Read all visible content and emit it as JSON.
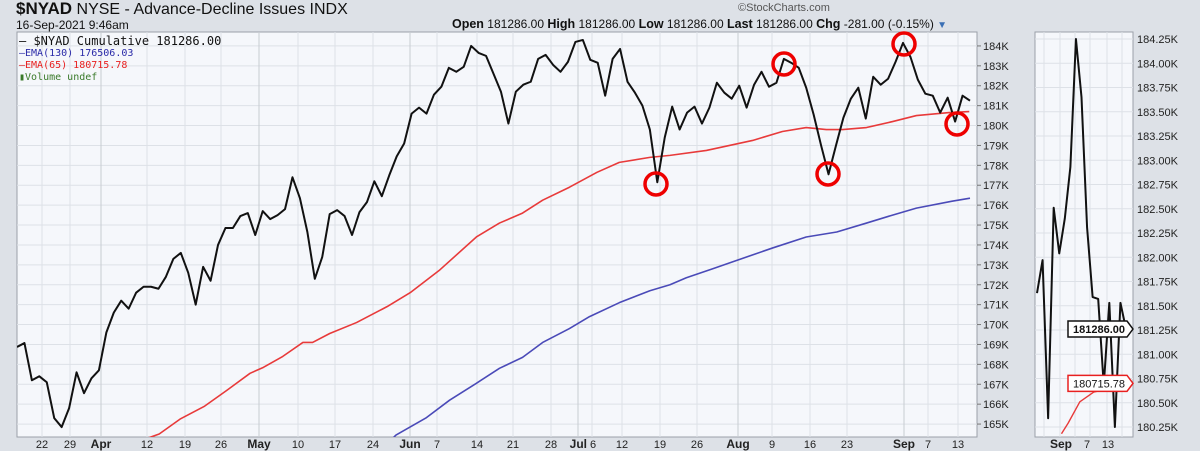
{
  "header": {
    "symbol": "$NYAD",
    "description": "NYSE - Advance-Decline Issues INDX",
    "date": "16-Sep-2021 9:46am",
    "credit": "©StockCharts.com",
    "open_label": "Open",
    "open": "181286.00",
    "high_label": "High",
    "high": "181286.00",
    "low_label": "Low",
    "low": "181286.00",
    "last_label": "Last",
    "last": "181286.00",
    "chg_label": "Chg",
    "chg": "-281.00 (-0.15%)",
    "dropdown_icon": "triangle-down-icon"
  },
  "legend": {
    "main": "— $NYAD Cumulative 181286.00",
    "ema130": "—EMA(130) 176506.03",
    "ema65": "—EMA(65) 180715.78",
    "volume": "Volume undef"
  },
  "chart_data": [
    {
      "type": "line",
      "title": "$NYAD Cumulative (daily)",
      "ylim": [
        164.35,
        184.7
      ],
      "y_unit": "K",
      "yticks": [
        "165K",
        "166K",
        "167K",
        "168K",
        "169K",
        "170K",
        "171K",
        "172K",
        "173K",
        "174K",
        "175K",
        "176K",
        "177K",
        "178K",
        "179K",
        "180K",
        "181K",
        "182K",
        "183K",
        "184K"
      ],
      "xticks": [
        {
          "label": "22",
          "bold": false
        },
        {
          "label": "29",
          "bold": false
        },
        {
          "label": "Apr",
          "bold": true
        },
        {
          "label": "12",
          "bold": false
        },
        {
          "label": "19",
          "bold": false
        },
        {
          "label": "26",
          "bold": false
        },
        {
          "label": "May",
          "bold": true
        },
        {
          "label": "10",
          "bold": false
        },
        {
          "label": "17",
          "bold": false
        },
        {
          "label": "24",
          "bold": false
        },
        {
          "label": "Jun",
          "bold": true
        },
        {
          "label": "7",
          "bold": false
        },
        {
          "label": "14",
          "bold": false
        },
        {
          "label": "21",
          "bold": false
        },
        {
          "label": "28",
          "bold": false
        },
        {
          "label": "Jul",
          "bold": true
        },
        {
          "label": "6",
          "bold": false
        },
        {
          "label": "12",
          "bold": false
        },
        {
          "label": "19",
          "bold": false
        },
        {
          "label": "26",
          "bold": false
        },
        {
          "label": "Aug",
          "bold": true
        },
        {
          "label": "9",
          "bold": false
        },
        {
          "label": "16",
          "bold": false
        },
        {
          "label": "23",
          "bold": false
        },
        {
          "label": "Sep",
          "bold": true
        },
        {
          "label": "7",
          "bold": false
        },
        {
          "label": "13",
          "bold": false
        }
      ],
      "grid": true,
      "series": [
        {
          "name": "$NYAD Cumulative",
          "color": "#111111",
          "values": [
            168.87,
            169.07,
            167.2,
            167.4,
            167.1,
            165.3,
            164.85,
            165.8,
            167.6,
            166.55,
            167.3,
            167.7,
            169.6,
            170.6,
            171.2,
            170.8,
            171.6,
            171.9,
            171.9,
            171.8,
            172.4,
            173.3,
            173.6,
            172.6,
            171.0,
            172.9,
            172.2,
            174.0,
            174.85,
            174.85,
            175.45,
            175.6,
            174.5,
            175.7,
            175.3,
            175.5,
            175.8,
            177.4,
            176.35,
            174.65,
            172.3,
            173.4,
            175.55,
            175.75,
            175.45,
            174.5,
            175.65,
            176.15,
            177.2,
            176.45,
            177.5,
            178.45,
            179.1,
            180.6,
            180.9,
            180.6,
            181.55,
            181.95,
            182.9,
            182.7,
            182.95,
            184.0,
            183.65,
            183.5,
            182.6,
            181.7,
            180.1,
            181.7,
            182.05,
            182.2,
            183.35,
            183.55,
            183.05,
            182.7,
            183.2,
            184.2,
            184.3,
            183.3,
            183.15,
            181.5,
            183.35,
            183.85,
            182.2,
            181.65,
            181.0,
            179.8,
            177.15,
            179.4,
            180.95,
            179.8,
            180.65,
            180.95,
            180.1,
            180.9,
            182.15,
            181.65,
            181.35,
            182.0,
            180.9,
            182.05,
            182.7,
            181.95,
            182.15,
            183.35,
            183.15,
            182.9,
            181.9,
            180.55,
            179.0,
            177.55,
            179.0,
            180.4,
            181.35,
            181.9,
            180.35,
            182.45,
            182.05,
            182.35,
            183.2,
            184.15,
            183.45,
            182.3,
            181.6,
            181.5,
            180.65,
            181.4,
            180.2,
            181.5,
            181.25
          ]
        },
        {
          "name": "EMA(65)",
          "color": "#e83a3a",
          "points": [
            [
              17.6,
              164.3
            ],
            [
              19.1,
              164.5
            ],
            [
              21.9,
              165.25
            ],
            [
              25.2,
              165.9
            ],
            [
              28.2,
              166.7
            ],
            [
              31.3,
              167.55
            ],
            [
              33.1,
              167.85
            ],
            [
              35.7,
              168.4
            ],
            [
              38.4,
              169.1
            ],
            [
              39.7,
              169.1
            ],
            [
              42,
              169.55
            ],
            [
              45.6,
              170.1
            ],
            [
              49.7,
              170.9
            ],
            [
              52.8,
              171.6
            ],
            [
              56.8,
              172.75
            ],
            [
              61.7,
              174.4
            ],
            [
              64.8,
              175.1
            ],
            [
              67.9,
              175.6
            ],
            [
              70.6,
              176.25
            ],
            [
              74.2,
              176.9
            ],
            [
              77.9,
              177.65
            ],
            [
              80.9,
              178.15
            ],
            [
              85,
              178.4
            ],
            [
              87.7,
              178.5
            ],
            [
              92.6,
              178.75
            ],
            [
              98.8,
              179.25
            ],
            [
              102.8,
              179.7
            ],
            [
              106,
              179.9
            ],
            [
              108.7,
              179.8
            ],
            [
              110.9,
              179.8
            ],
            [
              114.1,
              179.9
            ],
            [
              117.6,
              180.2
            ],
            [
              120.8,
              180.5
            ],
            [
              125.2,
              180.65
            ],
            [
              127.9,
              180.7
            ]
          ]
        },
        {
          "name": "EMA(130)",
          "color": "#4a4ab8",
          "points": [
            [
              50.5,
              164.3
            ],
            [
              50.9,
              164.45
            ],
            [
              54.9,
              165.3
            ],
            [
              58.1,
              166.2
            ],
            [
              61.7,
              167.05
            ],
            [
              64.8,
              167.8
            ],
            [
              67.9,
              168.35
            ],
            [
              70.6,
              169.1
            ],
            [
              74.2,
              169.8
            ],
            [
              76.9,
              170.4
            ],
            [
              80.9,
              171.1
            ],
            [
              85,
              171.7
            ],
            [
              87.7,
              172.0
            ],
            [
              89.9,
              172.35
            ],
            [
              93.4,
              172.8
            ],
            [
              96.1,
              173.15
            ],
            [
              101.5,
              173.85
            ],
            [
              106,
              174.4
            ],
            [
              110.1,
              174.65
            ],
            [
              114.1,
              175.1
            ],
            [
              117.6,
              175.5
            ],
            [
              120.8,
              175.85
            ],
            [
              125.6,
              176.2
            ],
            [
              128,
              176.35
            ]
          ]
        }
      ],
      "annotations": [
        "red circles marking swing lows/highs near Jul 19, Aug 12, Aug 20, Sep 2, Sep 14"
      ]
    },
    {
      "type": "line",
      "title": "$NYAD recent detail",
      "ylim": [
        180.15,
        184.3
      ],
      "y_unit": "K",
      "yticks": [
        "184.25K",
        "184.00K",
        "183.75K",
        "183.50K",
        "183.25K",
        "183.00K",
        "182.75K",
        "182.50K",
        "182.25K",
        "182.00K",
        "181.75K",
        "181.50K",
        "181.25K",
        "181.00K",
        "180.75K",
        "180.50K",
        "180.25K"
      ],
      "xticks": [
        {
          "label": "Sep",
          "bold": true
        },
        {
          "label": "7",
          "bold": false
        },
        {
          "label": "13",
          "bold": false
        }
      ],
      "series": [
        {
          "name": "$NYAD",
          "color": "#111111",
          "values": [
            181.63,
            181.97,
            180.34,
            182.51,
            182.04,
            182.4,
            182.93,
            184.25,
            183.65,
            182.31,
            181.59,
            181.57,
            180.68,
            181.53,
            180.25,
            181.53,
            181.26
          ]
        },
        {
          "name": "EMA(65)",
          "color": "#e83a3a",
          "points": [
            [
              4.4,
              180.18
            ],
            [
              5.6,
              180.29
            ],
            [
              7.7,
              180.51
            ],
            [
              10.2,
              180.61
            ],
            [
              13.2,
              180.65
            ],
            [
              16.2,
              180.7
            ]
          ]
        }
      ],
      "price_tags": {
        "last": "181286.00",
        "ema65": "180715.78"
      }
    }
  ]
}
